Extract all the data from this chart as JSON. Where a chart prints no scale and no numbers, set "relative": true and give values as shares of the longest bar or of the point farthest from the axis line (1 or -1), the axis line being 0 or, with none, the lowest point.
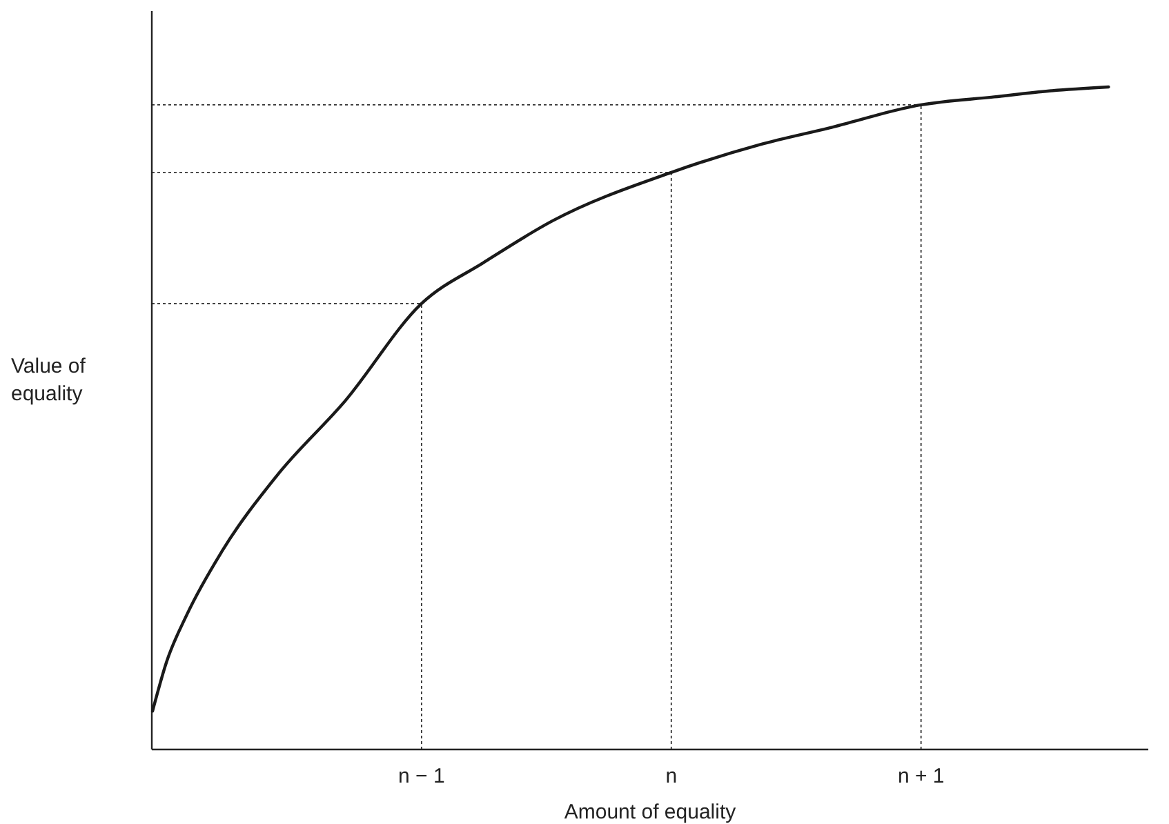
{
  "chart_data": {
    "type": "line",
    "relative": true,
    "xlabel": "Amount of equality",
    "ylabel": "Value of equality",
    "xlim": [
      -2.08,
      1.91
    ],
    "xticks": [
      {
        "value": -1,
        "label": "n − 1"
      },
      {
        "value": 0,
        "label": "n"
      },
      {
        "value": 1,
        "label": "n + 1"
      }
    ],
    "series": [
      {
        "color": "#1a1a1a",
        "x": [
          -2.077,
          -2.022,
          -1.939,
          -1.801,
          -1.58,
          -1.304,
          -1,
          -0.751,
          -0.475,
          0,
          0.354,
          0.63,
          1,
          1.293,
          1.514,
          1.751
        ],
        "values": [
          0.058,
          0.131,
          0.204,
          0.298,
          0.413,
          0.527,
          0.673,
          0.735,
          0.798,
          0.871,
          0.913,
          0.938,
          0.973,
          0.985,
          0.994,
          1
        ]
      }
    ],
    "ref_lines": [
      {
        "axis": "x",
        "value": -1,
        "line_style": "dotted"
      },
      {
        "axis": "x",
        "value": 0,
        "line_style": "dotted"
      },
      {
        "axis": "x",
        "value": 1,
        "line_style": "dotted"
      },
      {
        "axis": "y",
        "value": 0.673,
        "line_style": "dotted"
      },
      {
        "axis": "y",
        "value": 0.871,
        "line_style": "dotted"
      },
      {
        "axis": "y",
        "value": 0.973,
        "line_style": "dotted"
      }
    ],
    "grid": false,
    "marker": "none",
    "line_style": "solid"
  }
}
